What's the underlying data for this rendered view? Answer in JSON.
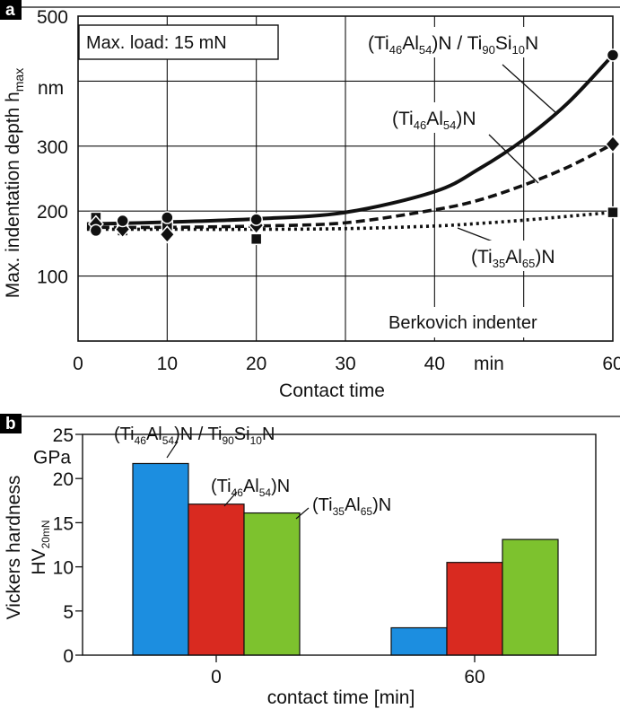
{
  "figure": {
    "panel_a_letter": "a",
    "panel_b_letter": "b"
  },
  "chart_data": [
    {
      "panel": "a",
      "type": "line",
      "title": "",
      "xlabel": "Contact time",
      "ylabel_main": "Max. indentation depth h",
      "ylabel_sub": "max",
      "x_unit_label": "min",
      "y_unit_label": "nm",
      "xlim": [
        0,
        60
      ],
      "ylim": [
        0,
        500
      ],
      "grid": true,
      "x_ticks": [
        0,
        10,
        20,
        30,
        40,
        60
      ],
      "y_ticks": [
        100,
        200,
        300,
        500
      ],
      "annotations": {
        "load": "Max. load: 15 mN",
        "indenter": "Berkovich indenter"
      },
      "series": [
        {
          "name": "(Ti46Al54)N / Ti90Si10N",
          "label_parts": [
            "(Ti",
            "46",
            "Al",
            "54",
            ")N / Ti",
            "90",
            "Si",
            "10",
            "N"
          ],
          "style": "solid",
          "marker": "circle",
          "points": [
            [
              2,
              170
            ],
            [
              5,
              185
            ],
            [
              10,
              190
            ],
            [
              20,
              187
            ],
            [
              60,
              440
            ]
          ],
          "curve": [
            [
              1,
              180
            ],
            [
              10,
              183
            ],
            [
              20,
              188
            ],
            [
              30,
              198
            ],
            [
              40,
              230
            ],
            [
              45,
              265
            ],
            [
              50,
              310
            ],
            [
              55,
              367
            ],
            [
              60,
              440
            ]
          ]
        },
        {
          "name": "(Ti46Al54)N",
          "label_parts": [
            "(Ti",
            "46",
            "Al",
            "54",
            ")N"
          ],
          "style": "dashed",
          "marker": "diamond",
          "points": [
            [
              2,
              180
            ],
            [
              5,
              172
            ],
            [
              10,
              164
            ],
            [
              20,
              178
            ],
            [
              60,
              303
            ]
          ],
          "curve": [
            [
              1,
              175
            ],
            [
              10,
              175
            ],
            [
              20,
              177
            ],
            [
              30,
              182
            ],
            [
              40,
              202
            ],
            [
              45,
              217
            ],
            [
              50,
              240
            ],
            [
              55,
              268
            ],
            [
              60,
              303
            ]
          ]
        },
        {
          "name": "(Ti35Al65)N",
          "label_parts": [
            "(Ti",
            "35",
            "Al",
            "65",
            ")N"
          ],
          "style": "dotted",
          "marker": "square",
          "points": [
            [
              2,
              190
            ],
            [
              5,
              170
            ],
            [
              10,
              176
            ],
            [
              20,
              157
            ],
            [
              60,
              198
            ]
          ],
          "curve": [
            [
              1,
              172
            ],
            [
              10,
              172
            ],
            [
              20,
              172
            ],
            [
              30,
              173
            ],
            [
              40,
              177
            ],
            [
              45,
              181
            ],
            [
              50,
              186
            ],
            [
              55,
              192
            ],
            [
              60,
              198
            ]
          ]
        }
      ]
    },
    {
      "panel": "b",
      "type": "bar",
      "title": "",
      "xlabel": "contact time [min]",
      "ylabel_line1": "Vickers hardness",
      "ylabel_line2": "HV",
      "ylabel_sub": "20mN",
      "y_unit_label": "GPa",
      "ylim": [
        0,
        25
      ],
      "y_ticks": [
        0,
        5,
        10,
        15,
        20,
        25
      ],
      "categories": [
        "0",
        "60"
      ],
      "series": [
        {
          "name": "(Ti46Al54)N / Ti90Si10N",
          "label_parts": [
            "(Ti",
            "46",
            "Al",
            "54",
            ")N / Ti",
            "90",
            "Si",
            "10",
            "N"
          ],
          "color": "#1c8ee0",
          "values": [
            21.7,
            3.1
          ]
        },
        {
          "name": "(Ti46Al54)N",
          "label_parts": [
            "(Ti",
            "46",
            "Al",
            "54",
            ")N"
          ],
          "color": "#d92a20",
          "values": [
            17.1,
            10.5
          ]
        },
        {
          "name": "(Ti35Al65)N",
          "label_parts": [
            "(Ti",
            "35",
            "Al",
            "65",
            ")N"
          ],
          "color": "#7dc22e",
          "values": [
            16.1,
            13.1
          ]
        }
      ]
    }
  ]
}
